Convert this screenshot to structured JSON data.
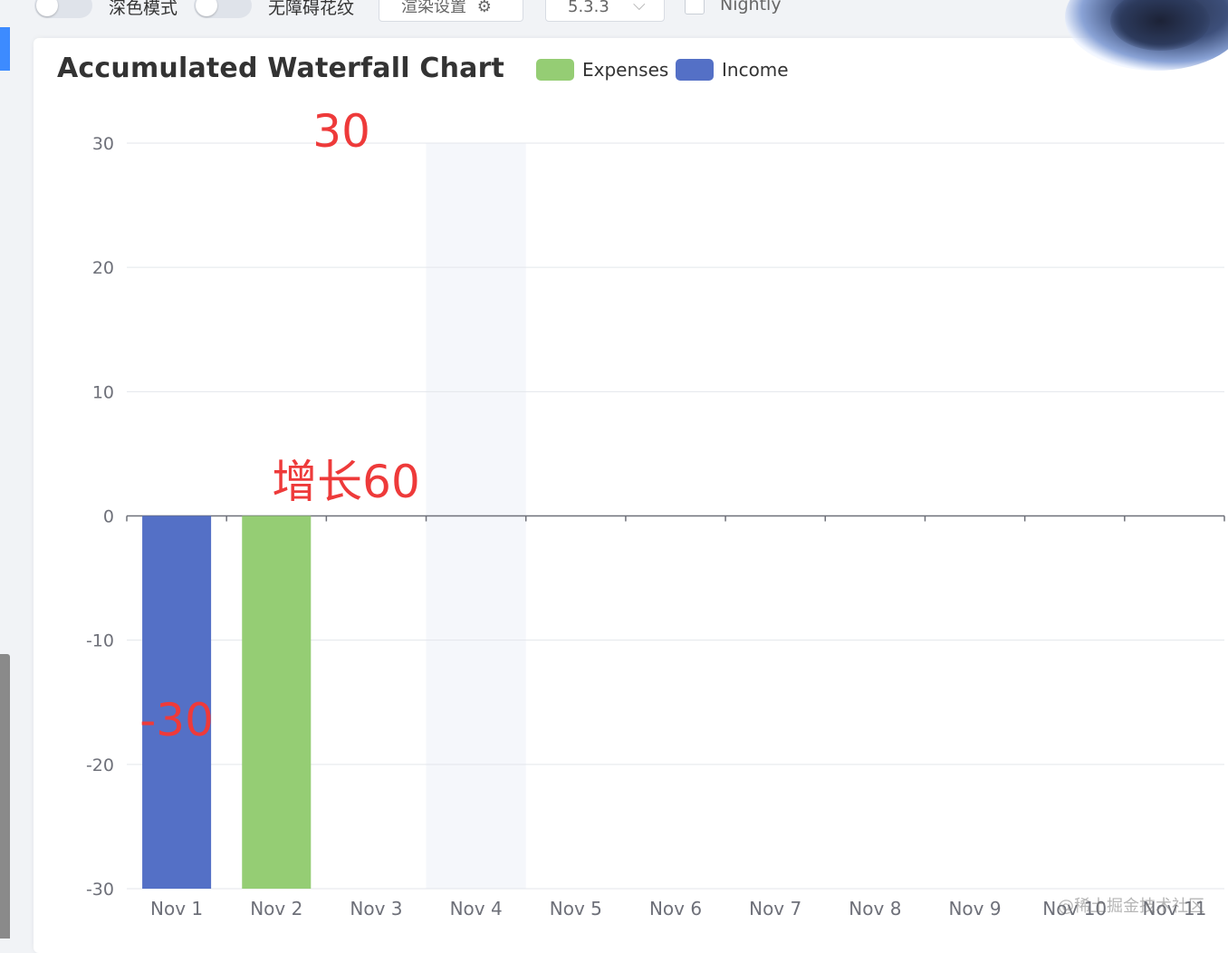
{
  "toolbar": {
    "dark_mode_label": "深色模式",
    "aria_decal_label": "无障碍花纹",
    "render_settings_label": "渲染设置",
    "version_value": "5.3.3",
    "nightly_label": "Nightly"
  },
  "chart_data": {
    "type": "bar",
    "title": "Accumulated Waterfall Chart",
    "categories": [
      "Nov 1",
      "Nov 2",
      "Nov 3",
      "Nov 4",
      "Nov 5",
      "Nov 6",
      "Nov 7",
      "Nov 8",
      "Nov 9",
      "Nov 10",
      "Nov 11"
    ],
    "series": [
      {
        "name": "Expenses",
        "color": "#95cd74",
        "values": [
          null,
          30,
          null,
          null,
          null,
          null,
          null,
          null,
          null,
          null,
          null
        ],
        "base": [
          null,
          -30,
          null,
          null,
          null,
          null,
          null,
          null,
          null,
          null,
          null
        ]
      },
      {
        "name": "Income",
        "color": "#5470c6",
        "values": [
          -30,
          null,
          null,
          null,
          null,
          null,
          null,
          null,
          null,
          null,
          null
        ],
        "base": [
          0,
          null,
          null,
          null,
          null,
          null,
          null,
          null,
          null,
          null,
          null
        ]
      }
    ],
    "ylim": [
      -30,
      30
    ],
    "yticks": [
      "30",
      "20",
      "10",
      "0",
      "-10",
      "-20",
      "-30"
    ],
    "highlighted_category": "Nov 4",
    "grid": true,
    "legend_position": "top",
    "annotations": [
      {
        "text": "30",
        "color": "#ee3a3a"
      },
      {
        "text": "增长60",
        "color": "#ee3a3a"
      },
      {
        "text": "-30",
        "color": "#ee3a3a"
      }
    ]
  },
  "watermark": "@稀土掘金技术社区"
}
